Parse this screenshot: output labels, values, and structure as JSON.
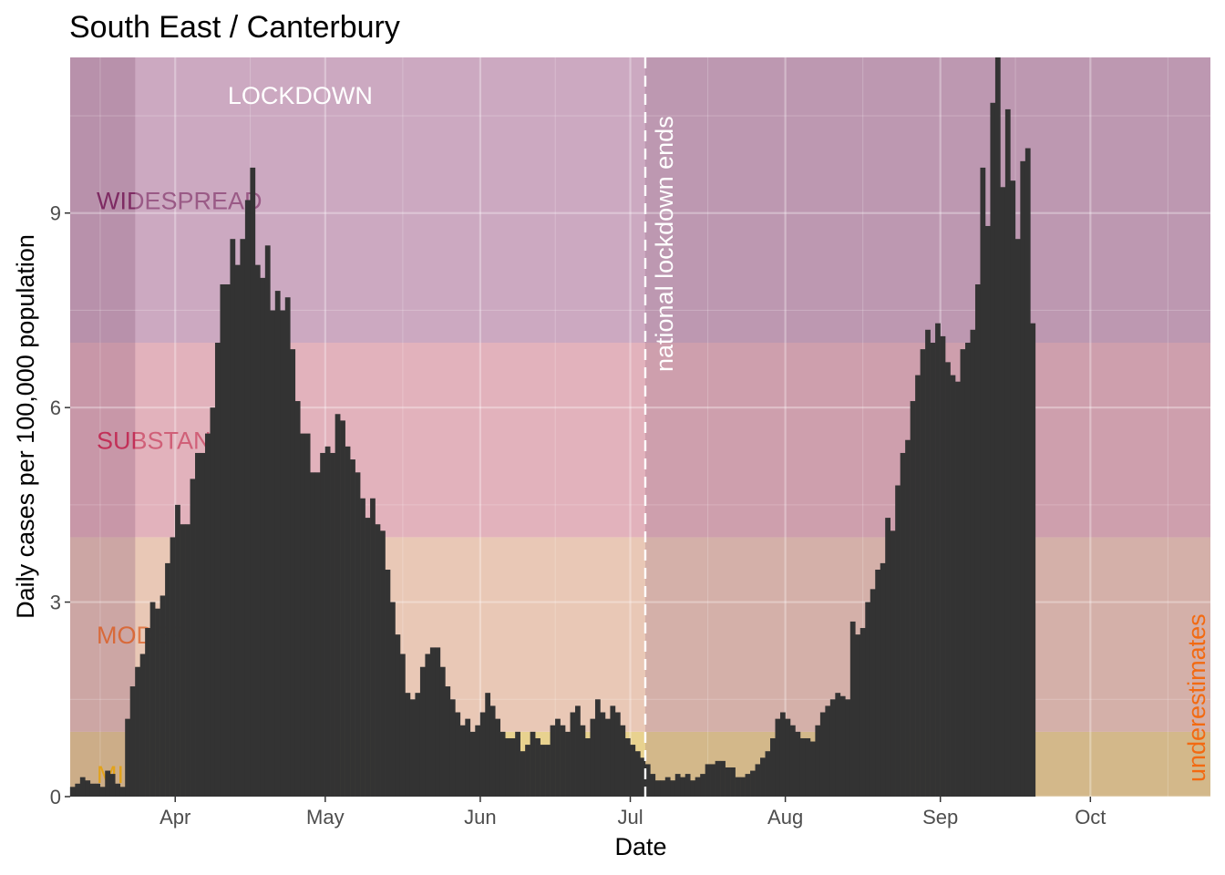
{
  "chart_data": {
    "type": "bar",
    "title": "South East / Canterbury",
    "xlabel": "Date",
    "ylabel": "Daily cases per 100,000 population",
    "x_start": "2020-03-11",
    "x_range": [
      "2020-03-11",
      "2020-10-25"
    ],
    "ylim": [
      0,
      11.4
    ],
    "y_ticks": [
      0,
      3,
      6,
      9
    ],
    "y_tick_labels": [
      "0",
      "3",
      "6",
      "9"
    ],
    "x_ticks": [
      {
        "date": "2020-04-01",
        "label": "Apr"
      },
      {
        "date": "2020-05-01",
        "label": "May"
      },
      {
        "date": "2020-06-01",
        "label": "Jun"
      },
      {
        "date": "2020-07-01",
        "label": "Jul"
      },
      {
        "date": "2020-08-01",
        "label": "Aug"
      },
      {
        "date": "2020-09-01",
        "label": "Sep"
      },
      {
        "date": "2020-10-01",
        "label": "Oct"
      }
    ],
    "bar_color": "#333333",
    "grid": true,
    "bands": [
      {
        "label": "MINIMAL",
        "ymin": 0,
        "ymax": 1,
        "color": "#e8d28f"
      },
      {
        "label": "MODERATE",
        "ymin": 1,
        "ymax": 4,
        "color": "#e9c8b6"
      },
      {
        "label": "SUBSTANTIAL",
        "ymin": 4,
        "ymax": 7,
        "color": "#e2b2bc"
      },
      {
        "label": "WIDESPREAD",
        "ymin": 7,
        "ymax": 11.4,
        "color": "#cca9c1"
      }
    ],
    "band_label_colors": {
      "MINIMAL": "#e5b53a",
      "MODERATE": "#e07b4a",
      "SUBSTANTIAL": "#d06078",
      "WIDESPREAD": "#9a5a86"
    },
    "band_label_dark_colors": {
      "MINIMAL": "#e2a21a",
      "MODERATE": "#d86a3a",
      "SUBSTANTIAL": "#c23058",
      "WIDESPREAD": "#7e2b63"
    },
    "shaded_periods": [
      {
        "start": "2020-03-11",
        "end": "2020-03-24",
        "label": "",
        "color": "#8a5a7c",
        "opacity": 0.3
      },
      {
        "start": "2020-07-04",
        "end": "2020-10-25",
        "label": "",
        "color": "#8a5a7c",
        "opacity": 0.22
      }
    ],
    "lockdown_label": "LOCKDOWN",
    "lockdown_label_date": "2020-04-26",
    "annotations": [
      {
        "date": "2020-07-04",
        "text": "national lockdown ends",
        "style": "dashed-vline",
        "color": "#ffffff"
      }
    ],
    "underestimates": {
      "text": "underestimates",
      "color": "#f26a12"
    },
    "values": [
      0.15,
      0.2,
      0.3,
      0.25,
      0.2,
      0.2,
      0.15,
      0.4,
      0.35,
      0.2,
      0.15,
      1.2,
      1.7,
      2.0,
      2.2,
      2.6,
      3.0,
      2.9,
      3.1,
      3.6,
      4.0,
      4.5,
      4.2,
      4.2,
      4.9,
      5.3,
      5.3,
      5.6,
      6.0,
      7.0,
      7.9,
      7.9,
      8.6,
      8.2,
      8.6,
      9.2,
      9.7,
      8.2,
      8.0,
      8.5,
      7.5,
      7.8,
      7.5,
      7.7,
      6.9,
      6.1,
      5.6,
      5.6,
      5.0,
      5.0,
      5.3,
      5.4,
      5.3,
      5.9,
      5.8,
      5.4,
      5.2,
      5.0,
      4.6,
      4.3,
      4.6,
      4.2,
      4.1,
      3.5,
      3.0,
      2.5,
      2.2,
      1.6,
      1.5,
      1.6,
      2.0,
      2.2,
      2.3,
      2.3,
      2.0,
      1.7,
      1.5,
      1.3,
      1.1,
      1.2,
      1.0,
      1.1,
      1.3,
      1.6,
      1.4,
      1.2,
      1.0,
      0.9,
      0.9,
      1.0,
      0.7,
      0.8,
      1.0,
      0.9,
      0.8,
      0.8,
      1.1,
      1.2,
      1.1,
      1.0,
      1.3,
      1.4,
      1.1,
      0.9,
      1.2,
      1.5,
      1.3,
      1.2,
      1.4,
      1.3,
      1.1,
      0.9,
      0.8,
      0.7,
      0.6,
      0.5,
      0.35,
      0.25,
      0.25,
      0.3,
      0.25,
      0.35,
      0.3,
      0.35,
      0.25,
      0.3,
      0.35,
      0.5,
      0.5,
      0.55,
      0.55,
      0.45,
      0.45,
      0.3,
      0.3,
      0.35,
      0.4,
      0.5,
      0.6,
      0.7,
      0.9,
      1.2,
      1.3,
      1.2,
      1.1,
      1.0,
      0.9,
      0.9,
      0.85,
      1.1,
      1.3,
      1.4,
      1.5,
      1.6,
      1.55,
      1.5,
      2.7,
      2.5,
      2.6,
      3.0,
      3.2,
      3.5,
      3.6,
      4.3,
      4.1,
      4.8,
      5.3,
      5.5,
      6.1,
      6.5,
      6.9,
      7.2,
      7.0,
      7.3,
      7.1,
      6.7,
      6.5,
      6.4,
      6.9,
      7.0,
      7.2,
      7.9,
      9.7,
      8.8,
      10.7,
      11.4,
      9.4,
      10.6,
      9.5,
      8.6,
      9.8,
      10.0,
      7.3
    ]
  }
}
